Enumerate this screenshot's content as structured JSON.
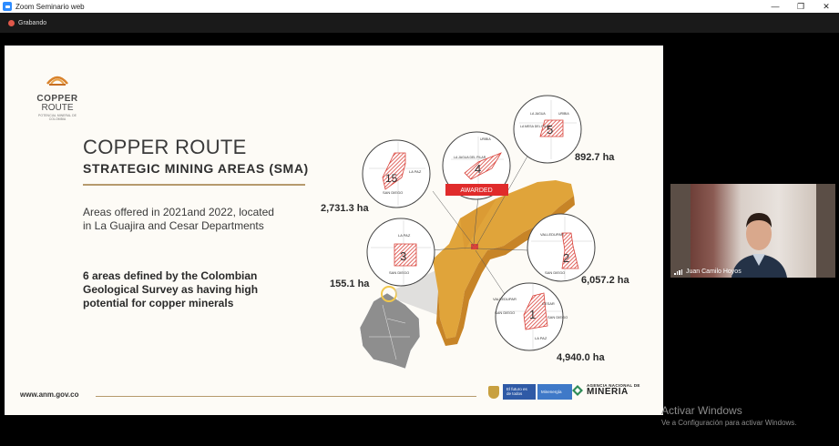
{
  "window": {
    "title": "Zoom Seminario web",
    "controls": [
      "minimize-icon",
      "maximize-icon",
      "close-icon"
    ]
  },
  "recording": {
    "label": "Grabando"
  },
  "slide": {
    "logo": {
      "line1": "COPPER",
      "line2": "ROUTE",
      "line3": "POTENCIAL MINERAL DE COLOMBIA"
    },
    "title": "COPPER ROUTE",
    "subtitle": "STRATEGIC MINING AREAS (SMA)",
    "paragraph1": "Areas offered in 2021and 2022, located in La Guajira and Cesar Departments",
    "paragraph2": "6 areas defined by the Colombian Geological Survey as having high potential for copper minerals",
    "url": "www.anm.gov.co",
    "gov_badge_text": "El futuro es de todos",
    "gov_ministry_text": "Minenergía",
    "agency_small": "AGENCIA NACIONAL DE",
    "agency_large": "MINERIA",
    "areas": [
      {
        "number": "5",
        "hectares": "892.7 ha",
        "labels": [
          "LA JAGUA",
          "URIBIA",
          "LA MESA DEL PILAR"
        ]
      },
      {
        "number": "4",
        "hectares": "",
        "labels": [
          "LA JAGUA DEL PILAR",
          "URIBIA"
        ],
        "badge": "AWARDED"
      },
      {
        "number": "15",
        "hectares": "2,731.3 ha",
        "labels": [
          "LA PAZ",
          "SAN DIEGO"
        ]
      },
      {
        "number": "3",
        "hectares": "155.1 ha",
        "labels": [
          "LA PAZ",
          "SAN DIEGO"
        ]
      },
      {
        "number": "2",
        "hectares": "6,057.2 ha",
        "labels": [
          "VALLEDUPAR",
          "SAN DIEGO"
        ]
      },
      {
        "number": "1",
        "hectares": "4,940.0 ha",
        "labels": [
          "VALLEDUPAR",
          "CESAR",
          "SAN DIEGO",
          "SAN DIEGO",
          "LA PAZ"
        ]
      }
    ],
    "colors": {
      "accent_gold": "#b69a6d",
      "map_orange": "#e0a43a",
      "hatch_red": "#d9423a",
      "awarded_red": "#e02b2b"
    }
  },
  "participant": {
    "name": "Juan Camilo Hoyos"
  },
  "watermark": {
    "line1": "Activar Windows",
    "line2": "Ve a Configuración para activar Windows."
  }
}
